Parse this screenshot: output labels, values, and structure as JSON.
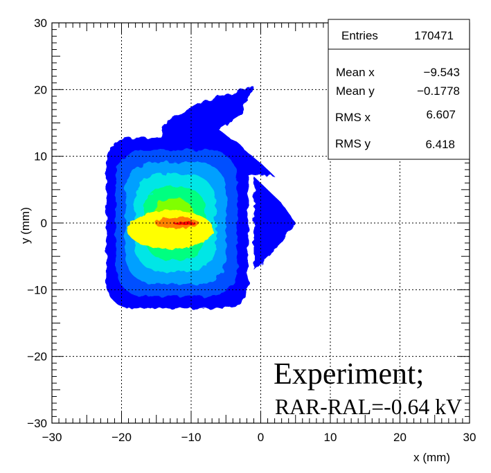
{
  "chart_data": {
    "type": "heatmap",
    "title": "",
    "xlabel": "x (mm)",
    "ylabel": "y (mm)",
    "xlim": [
      -30,
      30
    ],
    "ylim": [
      -30,
      30
    ],
    "x_ticks": [
      "−30",
      "−20",
      "−10",
      "0",
      "10",
      "20",
      "30"
    ],
    "y_ticks": [
      "−30",
      "−20",
      "−10",
      "0",
      "10",
      "20",
      "30"
    ],
    "grid": true,
    "colormap": [
      "#0000ff",
      "#0050ff",
      "#00a0ff",
      "#00e6e6",
      "#00ff80",
      "#80ff00",
      "#ffff00",
      "#ff8000",
      "#ff0000"
    ],
    "stats": {
      "entries_label": "Entries",
      "entries": "170471",
      "mean_x_label": "Mean x",
      "mean_x": "−9.543",
      "mean_y_label": "Mean y",
      "mean_y": "−0.1778",
      "rms_x_label": "RMS x",
      "rms_x": "6.607",
      "rms_y_label": "RMS y",
      "rms_y": "6.418"
    },
    "annotation_line1": "Experiment;",
    "annotation_line2": "RAR-RAL=-0.64 kV",
    "distribution": {
      "peak_x": -11,
      "peak_y": 0,
      "core_x_range": [
        -21,
        -3
      ],
      "core_y_range": [
        -10,
        10
      ],
      "tail_region": {
        "x_range": [
          -15,
          0
        ],
        "y_range": [
          10,
          20
        ]
      }
    }
  }
}
